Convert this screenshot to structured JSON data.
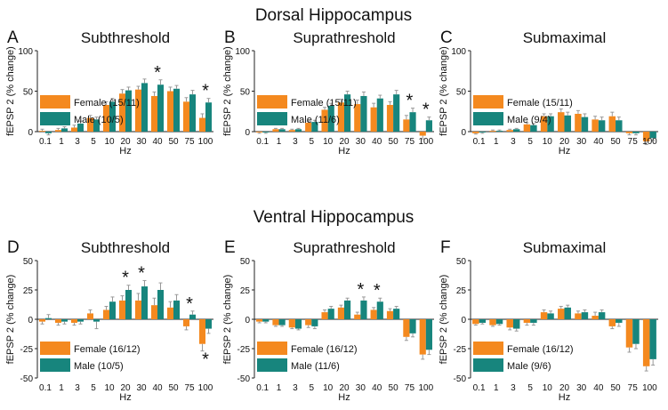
{
  "figure": {
    "section_titles": [
      "Dorsal Hippocampus",
      "Ventral Hippocampus"
    ],
    "colors": {
      "female": "#f4891f",
      "male": "#17857d",
      "axis": "#222222",
      "error": "#999999"
    }
  },
  "chart_data": [
    {
      "type": "bar",
      "letter": "A",
      "title": "Subthreshold",
      "xlabel": "Hz",
      "ylabel": "fEPSP 2 (% change)",
      "ylim": [
        0,
        100
      ],
      "yticks": [
        0,
        50,
        100
      ],
      "categories": [
        "0.1",
        "1",
        "3",
        "5",
        "10",
        "20",
        "30",
        "40",
        "50",
        "75",
        "100"
      ],
      "series": [
        {
          "name": "Female (15/11)",
          "values": [
            1,
            2,
            5,
            17,
            33,
            47,
            52,
            44,
            50,
            37,
            17
          ],
          "errors": [
            2,
            2,
            3,
            3,
            4,
            5,
            4,
            5,
            5,
            5,
            5
          ]
        },
        {
          "name": "Male (10/5)",
          "values": [
            -2,
            4,
            10,
            15,
            37,
            51,
            60,
            58,
            53,
            46,
            36
          ],
          "errors": [
            2,
            2,
            3,
            3,
            4,
            4,
            5,
            6,
            4,
            5,
            5
          ]
        }
      ],
      "significant": [
        {
          "index": 7,
          "sign": 1
        },
        {
          "index": 10,
          "sign": 1
        }
      ],
      "significance_label": "*"
    },
    {
      "type": "bar",
      "letter": "B",
      "title": "Suprathreshold",
      "xlabel": "Hz",
      "ylabel": "fEPSP 2 (% change)",
      "ylim": [
        0,
        100
      ],
      "yticks": [
        0,
        50,
        100
      ],
      "categories": [
        "0.1",
        "1",
        "3",
        "5",
        "10",
        "20",
        "30",
        "40",
        "50",
        "75",
        "100"
      ],
      "series": [
        {
          "name": "Female (15/11)",
          "values": [
            -1,
            3,
            2,
            11,
            27,
            36,
            34,
            30,
            33,
            15,
            -5
          ],
          "errors": [
            1,
            1,
            1,
            2,
            3,
            4,
            5,
            5,
            4,
            5,
            4
          ]
        },
        {
          "name": "Male (11/6)",
          "values": [
            -1,
            3,
            3,
            12,
            32,
            46,
            44,
            41,
            46,
            24,
            14
          ],
          "errors": [
            1,
            1,
            1,
            2,
            3,
            4,
            5,
            4,
            5,
            5,
            4
          ]
        }
      ],
      "significant": [
        {
          "index": 9,
          "sign": 1
        },
        {
          "index": 10,
          "sign": 1
        }
      ],
      "significance_label": "*"
    },
    {
      "type": "bar",
      "letter": "C",
      "title": "Submaximal",
      "xlabel": "Hz",
      "ylabel": "fEPSP 2 (% change)",
      "ylim": [
        0,
        100
      ],
      "yticks": [
        0,
        50,
        100
      ],
      "categories": [
        "0.1",
        "1",
        "3",
        "5",
        "10",
        "20",
        "30",
        "40",
        "50",
        "75",
        "100"
      ],
      "series": [
        {
          "name": "Female (15/11)",
          "values": [
            -2,
            1,
            2,
            9,
            19,
            24,
            22,
            15,
            19,
            -2,
            -12
          ],
          "errors": [
            1,
            1,
            1,
            2,
            3,
            4,
            4,
            4,
            5,
            2,
            4
          ]
        },
        {
          "name": "Male (9/4)",
          "values": [
            -1,
            1,
            3,
            8,
            19,
            20,
            18,
            14,
            14,
            -2,
            -8
          ],
          "errors": [
            1,
            1,
            1,
            2,
            3,
            4,
            4,
            4,
            4,
            2,
            3
          ]
        }
      ],
      "significant": [],
      "significance_label": "*"
    },
    {
      "type": "bar",
      "letter": "D",
      "title": "Subthreshold",
      "xlabel": "Hz",
      "ylabel": "fEPSP 2 (% change)",
      "ylim": [
        -50,
        50
      ],
      "yticks": [
        -50,
        -25,
        0,
        25,
        50
      ],
      "categories": [
        "0.1",
        "1",
        "3",
        "5",
        "10",
        "20",
        "30",
        "40",
        "50",
        "75",
        "100"
      ],
      "series": [
        {
          "name": "Female (16/12)",
          "values": [
            -2,
            -3,
            -3,
            5,
            8,
            16,
            16,
            12,
            10,
            -6,
            -21
          ],
          "errors": [
            2,
            2,
            2,
            3,
            3,
            4,
            6,
            6,
            5,
            3,
            6
          ]
        },
        {
          "name": "Male (10/5)",
          "values": [
            1,
            -2,
            -2,
            -2,
            15,
            25,
            28,
            25,
            16,
            4,
            -8
          ],
          "errors": [
            3,
            2,
            2,
            6,
            4,
            4,
            5,
            6,
            5,
            3,
            4
          ]
        }
      ],
      "significant": [
        {
          "index": 5,
          "sign": 1
        },
        {
          "index": 6,
          "sign": 1
        },
        {
          "index": 9,
          "sign": 1
        },
        {
          "index": 10,
          "sign": -1
        }
      ],
      "significance_label": "*"
    },
    {
      "type": "bar",
      "letter": "E",
      "title": "Suprathreshold",
      "xlabel": "Hz",
      "ylabel": "fEPSP 2 (% change)",
      "ylim": [
        -50,
        50
      ],
      "yticks": [
        -50,
        -25,
        0,
        25,
        50
      ],
      "categories": [
        "0.1",
        "1",
        "3",
        "5",
        "10",
        "20",
        "30",
        "40",
        "50",
        "75",
        "100"
      ],
      "series": [
        {
          "name": "Female (16/12)",
          "values": [
            -2,
            -5,
            -7,
            -5,
            6,
            10,
            4,
            8,
            7,
            -15,
            -30
          ],
          "errors": [
            1,
            1,
            1,
            2,
            2,
            2,
            2,
            2,
            2,
            3,
            4
          ]
        },
        {
          "name": "Male (11/6)",
          "values": [
            -2,
            -5,
            -8,
            -6,
            9,
            16,
            16,
            15,
            9,
            -12,
            -26
          ],
          "errors": [
            1,
            1,
            1,
            2,
            2,
            2,
            3,
            3,
            2,
            3,
            4
          ]
        }
      ],
      "significant": [
        {
          "index": 6,
          "sign": 1
        },
        {
          "index": 7,
          "sign": 1
        }
      ],
      "significance_label": "*"
    },
    {
      "type": "bar",
      "letter": "F",
      "title": "Submaximal",
      "xlabel": "Hz",
      "ylabel": "fEPSP 2 (% change)",
      "ylim": [
        -50,
        50
      ],
      "yticks": [
        -50,
        -25,
        0,
        25,
        50
      ],
      "categories": [
        "0.1",
        "1",
        "3",
        "5",
        "10",
        "20",
        "30",
        "40",
        "50",
        "75",
        "100"
      ],
      "series": [
        {
          "name": "Female (16/12)",
          "values": [
            -4,
            -5,
            -7,
            -3,
            6,
            9,
            5,
            3,
            -6,
            -24,
            -40
          ],
          "errors": [
            1,
            1,
            2,
            2,
            2,
            2,
            2,
            3,
            2,
            4,
            4
          ]
        },
        {
          "name": "Male (9/6)",
          "values": [
            -3,
            -4,
            -8,
            -3,
            5,
            10,
            6,
            6,
            -3,
            -21,
            -34
          ],
          "errors": [
            1,
            1,
            2,
            2,
            2,
            2,
            2,
            2,
            3,
            4,
            5
          ]
        }
      ],
      "significant": [],
      "significance_label": "*"
    }
  ]
}
